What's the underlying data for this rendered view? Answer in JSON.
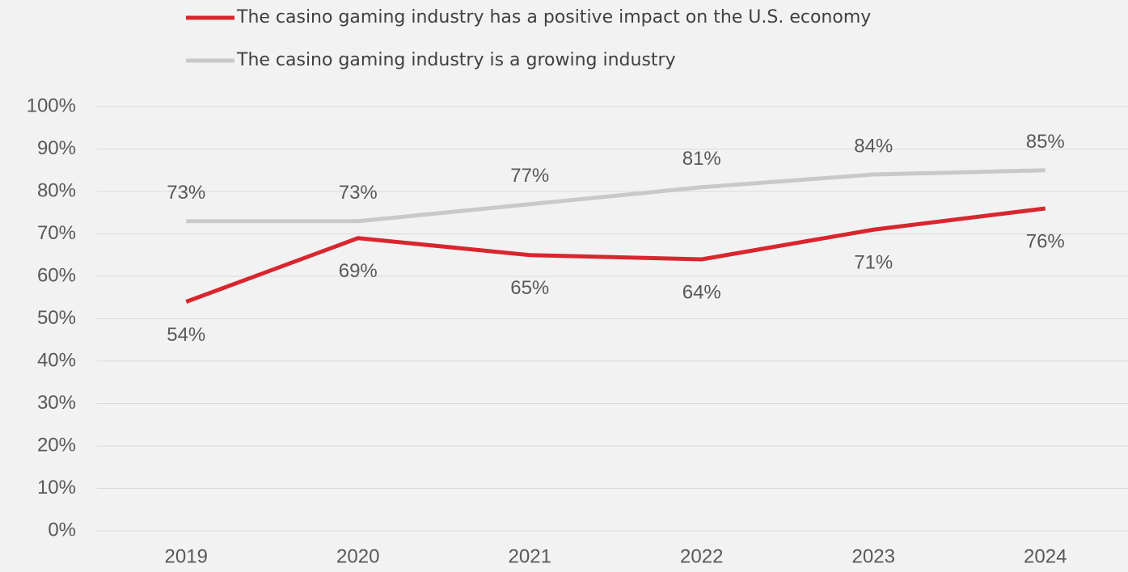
{
  "chart_data": {
    "type": "line",
    "categories": [
      "2019",
      "2020",
      "2021",
      "2022",
      "2023",
      "2024"
    ],
    "series": [
      {
        "name": "The casino gaming industry has a positive impact on the U.S. economy",
        "color": "#d9262e",
        "values": [
          54,
          69,
          65,
          64,
          71,
          76
        ],
        "value_labels": [
          "54%",
          "69%",
          "65%",
          "64%",
          "71%",
          "76%"
        ]
      },
      {
        "name": "The casino gaming industry is a growing industry",
        "color": "#c9c9c9",
        "values": [
          73,
          73,
          77,
          81,
          84,
          85
        ],
        "value_labels": [
          "73%",
          "73%",
          "77%",
          "81%",
          "84%",
          "85%"
        ]
      }
    ],
    "ylim": [
      0,
      100
    ],
    "yticks": [
      {
        "value": 0,
        "label": "0%"
      },
      {
        "value": 10,
        "label": "10%"
      },
      {
        "value": 20,
        "label": "20%"
      },
      {
        "value": 30,
        "label": "30%"
      },
      {
        "value": 40,
        "label": "40%"
      },
      {
        "value": 50,
        "label": "50%"
      },
      {
        "value": 60,
        "label": "60%"
      },
      {
        "value": 70,
        "label": "70%"
      },
      {
        "value": 80,
        "label": "80%"
      },
      {
        "value": 90,
        "label": "90%"
      },
      {
        "value": 100,
        "label": "100%"
      }
    ],
    "grid": true,
    "legend": "top"
  }
}
